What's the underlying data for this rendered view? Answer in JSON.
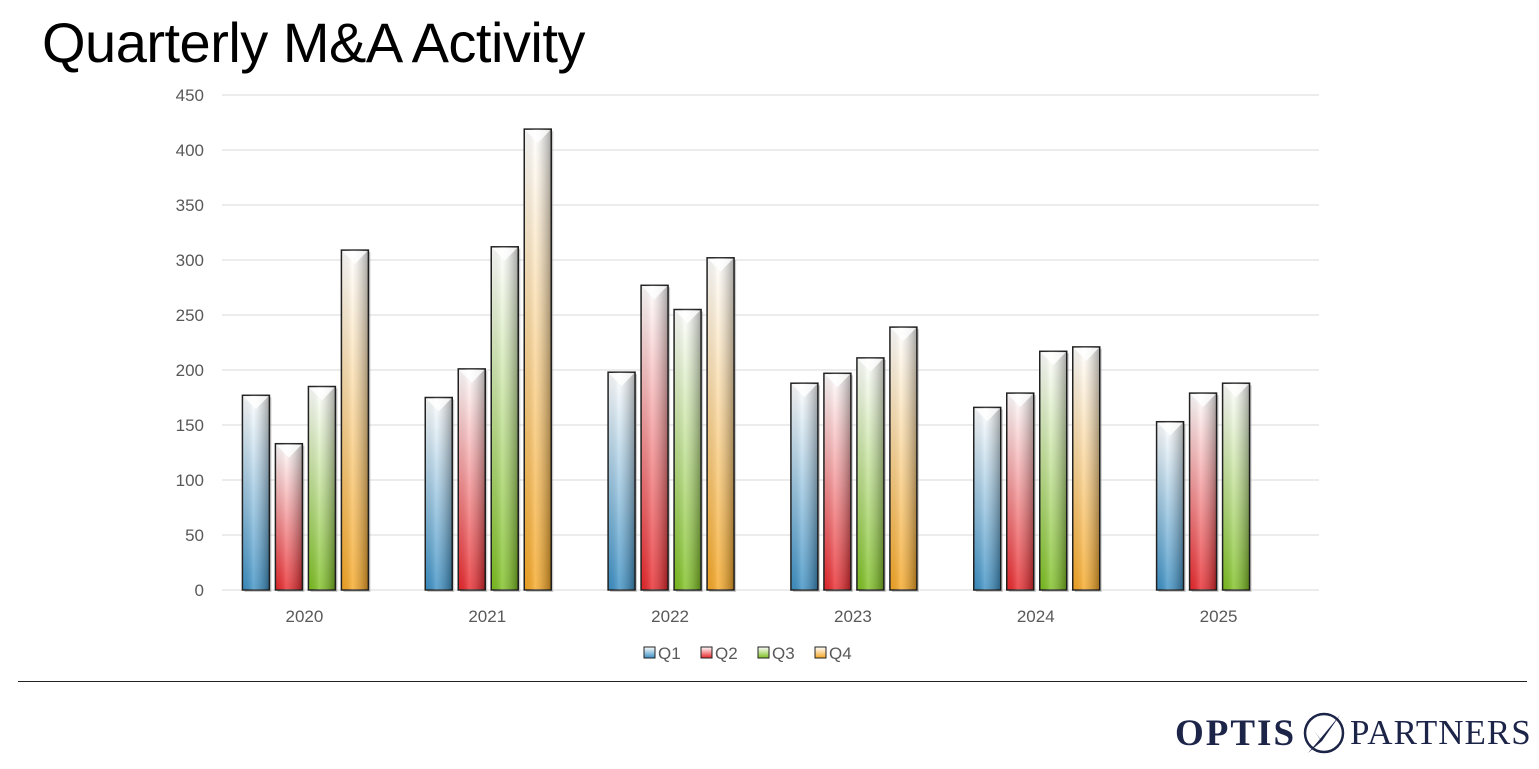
{
  "title": "Quarterly M&A Activity",
  "logo": {
    "left": "OPTIS",
    "right": "PARTNERS",
    "color": "#1c2448"
  },
  "chart_data": {
    "type": "bar",
    "title": "Quarterly M&A Activity",
    "categories": [
      "2020",
      "2021",
      "2022",
      "2023",
      "2024",
      "2025"
    ],
    "series": [
      {
        "name": "Q1",
        "color": "#3a8fc4",
        "values": [
          177,
          175,
          198,
          188,
          166,
          153
        ]
      },
      {
        "name": "Q2",
        "color": "#e8262a",
        "values": [
          133,
          201,
          277,
          197,
          179,
          179
        ]
      },
      {
        "name": "Q3",
        "color": "#7cbf1f",
        "values": [
          185,
          312,
          255,
          211,
          217,
          188
        ]
      },
      {
        "name": "Q4",
        "color": "#f5a623",
        "values": [
          309,
          419,
          302,
          239,
          221,
          null
        ]
      }
    ],
    "ylim": [
      0,
      450
    ],
    "yticks": [
      0,
      50,
      100,
      150,
      200,
      250,
      300,
      350,
      400,
      450
    ],
    "grid": true,
    "legend": "bottom"
  }
}
